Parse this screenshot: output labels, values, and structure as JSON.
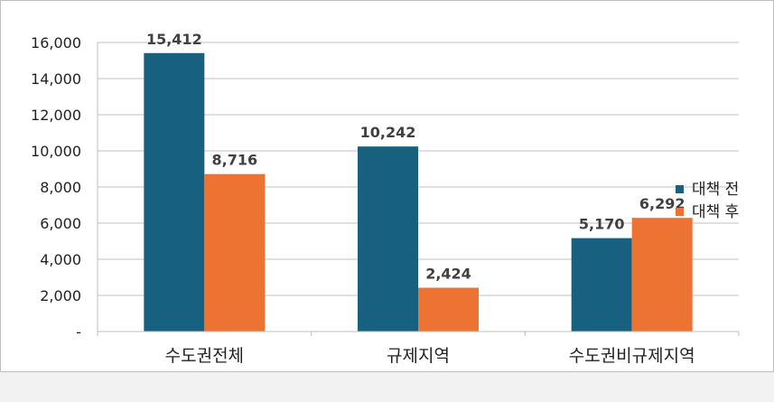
{
  "chart_data": {
    "type": "bar",
    "title": "",
    "xlabel": "",
    "ylabel": "",
    "categories": [
      "수도권전체",
      "규제지역",
      "수도권비규제지역"
    ],
    "series": [
      {
        "name": "대책 전",
        "values": [
          15412,
          10242,
          5170
        ],
        "labels": [
          "15,412",
          "10,242",
          "5,170"
        ],
        "color": "#17607f"
      },
      {
        "name": "대책 후",
        "values": [
          8716,
          2424,
          6292
        ],
        "labels": [
          "8,716",
          "2,424",
          "6,292"
        ],
        "color": "#ed7333"
      }
    ],
    "ylim": [
      0,
      16000
    ],
    "yticks": [
      0,
      2000,
      4000,
      6000,
      8000,
      10000,
      12000,
      14000,
      16000
    ],
    "ytick_labels": [
      "-",
      "2,000",
      "4,000",
      "6,000",
      "8,000",
      "10,000",
      "12,000",
      "14,000",
      "16,000"
    ],
    "grid": true,
    "legend_position": "right"
  }
}
